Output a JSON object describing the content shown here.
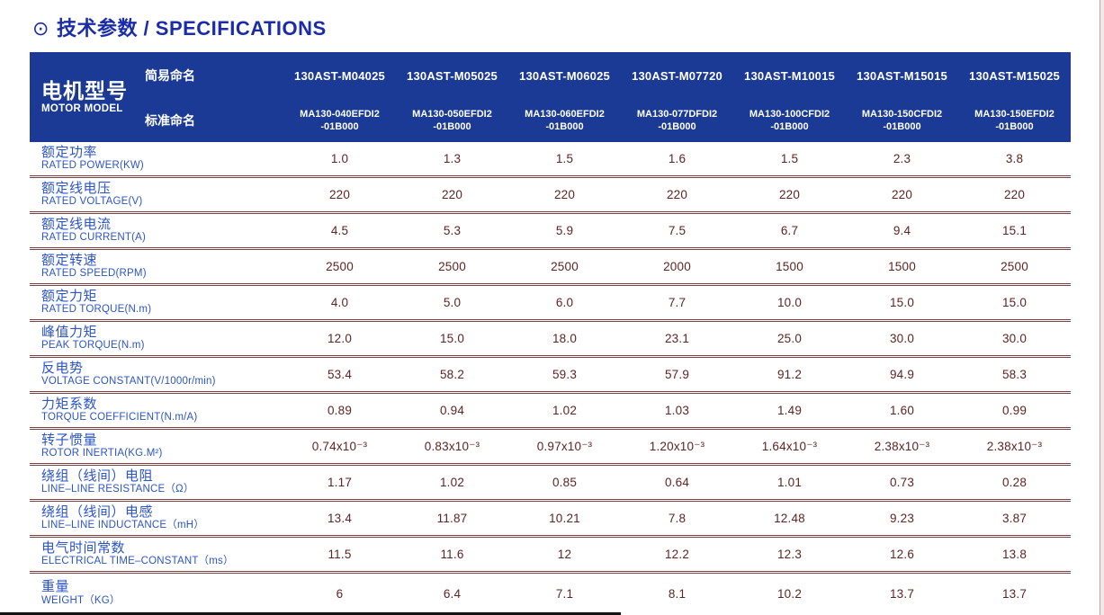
{
  "title": {
    "icon": "⊙",
    "text": "技术参数 / SPECIFICATIONS"
  },
  "colors": {
    "title_blue": "#1a2caa",
    "header_background": "#1a3a96",
    "header_text": "#ffffff",
    "label_blue": "#2b54c8",
    "value_maroon": "#5e2423",
    "divider_maroon": "#7d4343"
  },
  "table": {
    "header": {
      "motor_model_zh": "电机型号",
      "motor_model_en": "MOTOR MODEL",
      "simple_name_label": "简易命名",
      "standard_name_label": "标准命名",
      "columns": [
        {
          "simple": "130AST-M04025",
          "standard_line1": "MA130-040EFDI2",
          "standard_line2": "-01B000"
        },
        {
          "simple": "130AST-M05025",
          "standard_line1": "MA130-050EFDI2",
          "standard_line2": "-01B000"
        },
        {
          "simple": "130AST-M06025",
          "standard_line1": "MA130-060EFDI2",
          "standard_line2": "-01B000"
        },
        {
          "simple": "130AST-M07720",
          "standard_line1": "MA130-077DFDI2",
          "standard_line2": "-01B000"
        },
        {
          "simple": "130AST-M10015",
          "standard_line1": "MA130-100CFDI2",
          "standard_line2": "-01B000"
        },
        {
          "simple": "130AST-M15015",
          "standard_line1": "MA130-150CFDI2",
          "standard_line2": "-01B000"
        },
        {
          "simple": "130AST-M15025",
          "standard_line1": "MA130-150EFDI2",
          "standard_line2": "-01B000"
        }
      ]
    },
    "rows": [
      {
        "zh": "额定功率",
        "en": "RATED POWER(KW)",
        "values": [
          "1.0",
          "1.3",
          "1.5",
          "1.6",
          "1.5",
          "2.3",
          "3.8"
        ]
      },
      {
        "zh": "额定线电压",
        "en": "RATED VOLTAGE(V)",
        "values": [
          "220",
          "220",
          "220",
          "220",
          "220",
          "220",
          "220"
        ]
      },
      {
        "zh": "额定线电流",
        "en": "RATED CURRENT(A)",
        "values": [
          "4.5",
          "5.3",
          "5.9",
          "7.5",
          "6.7",
          "9.4",
          "15.1"
        ]
      },
      {
        "zh": "额定转速",
        "en": "RATED SPEED(RPM)",
        "values": [
          "2500",
          "2500",
          "2500",
          "2000",
          "1500",
          "1500",
          "2500"
        ]
      },
      {
        "zh": "额定力矩",
        "en": "RATED TORQUE(N.m)",
        "values": [
          "4.0",
          "5.0",
          "6.0",
          "7.7",
          "10.0",
          "15.0",
          "15.0"
        ]
      },
      {
        "zh": "峰值力矩",
        "en": "PEAK TORQUE(N.m)",
        "values": [
          "12.0",
          "15.0",
          "18.0",
          "23.1",
          "25.0",
          "30.0",
          "30.0"
        ]
      },
      {
        "zh": "反电势",
        "en": "VOLTAGE CONSTANT(V/1000r/min)",
        "values": [
          "53.4",
          "58.2",
          "59.3",
          "57.9",
          "91.2",
          "94.9",
          "58.3"
        ]
      },
      {
        "zh": "力矩系数",
        "en": "TORQUE COEFFICIENT(N.m/A)",
        "values": [
          "0.89",
          "0.94",
          "1.02",
          "1.03",
          "1.49",
          "1.60",
          "0.99"
        ]
      },
      {
        "zh": "转子惯量",
        "en": "ROTOR INERTIA(KG.M²)",
        "values": [
          "0.74x10⁻³",
          "0.83x10⁻³",
          "0.97x10⁻³",
          "1.20x10⁻³",
          "1.64x10⁻³",
          "2.38x10⁻³",
          "2.38x10⁻³"
        ]
      },
      {
        "zh": "绕组（线间）电阻",
        "en": "LINE–LINE RESISTANCE（Ω）",
        "values": [
          "1.17",
          "1.02",
          "0.85",
          "0.64",
          "1.01",
          "0.73",
          "0.28"
        ]
      },
      {
        "zh": "绕组（线间）电感",
        "en": "LINE–LINE INDUCTANCE（mH）",
        "values": [
          "13.4",
          "11.87",
          "10.21",
          "7.8",
          "12.48",
          "9.23",
          "3.87"
        ]
      },
      {
        "zh": "电气时间常数",
        "en": "ELECTRICAL TIME–CONSTANT（ms）",
        "values": [
          "11.5",
          "11.6",
          "12",
          "12.2",
          "12.3",
          "12.6",
          "13.8"
        ]
      },
      {
        "zh": "重量",
        "en": "WEIGHT（KG）",
        "values": [
          "6",
          "6.4",
          "7.1",
          "8.1",
          "10.2",
          "13.7",
          "13.7"
        ]
      }
    ]
  }
}
